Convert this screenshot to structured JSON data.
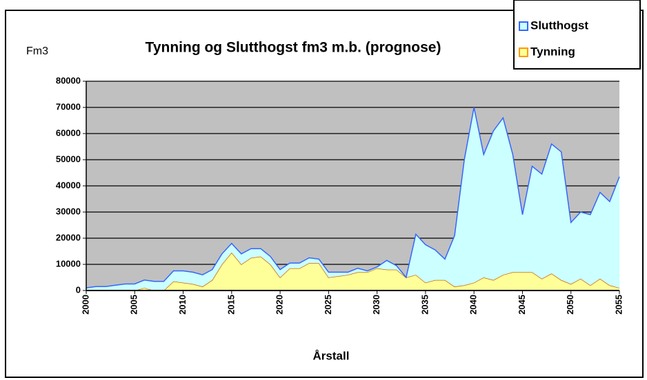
{
  "chart_data": {
    "type": "stacked-area",
    "title": "Tynning og Slutthogst fm3 m.b. (prognose)",
    "y_label": "Fm3",
    "x_label": "Årstall",
    "x": [
      2000,
      2001,
      2002,
      2003,
      2004,
      2005,
      2006,
      2007,
      2008,
      2009,
      2010,
      2011,
      2012,
      2013,
      2014,
      2015,
      2016,
      2017,
      2018,
      2019,
      2020,
      2021,
      2022,
      2023,
      2024,
      2025,
      2026,
      2027,
      2028,
      2029,
      2030,
      2031,
      2032,
      2033,
      2034,
      2035,
      2036,
      2037,
      2038,
      2039,
      2040,
      2041,
      2042,
      2043,
      2044,
      2045,
      2046,
      2047,
      2048,
      2049,
      2050,
      2051,
      2052,
      2053,
      2054,
      2055
    ],
    "series": [
      {
        "name": "Slutthogst",
        "color": "#ccffff",
        "stroke": "#3366ff",
        "values": [
          1000,
          1500,
          1500,
          2000,
          2500,
          2500,
          3000,
          3500,
          3500,
          4000,
          4500,
          4500,
          4500,
          4000,
          4000,
          3500,
          4000,
          3500,
          3000,
          3000,
          3000,
          2000,
          2000,
          2000,
          1500,
          2000,
          1500,
          1000,
          1500,
          500,
          500,
          3500,
          1500,
          0,
          15500,
          14500,
          11500,
          8000,
          19500,
          48000,
          67000,
          47000,
          57000,
          60000,
          45000,
          22000,
          40500,
          40000,
          49500,
          49000,
          23500,
          25500,
          27000,
          33000,
          32000,
          42500
        ]
      },
      {
        "name": "Tynning",
        "color": "#ffff99",
        "stroke": "#cc6600",
        "values": [
          0,
          0,
          0,
          0,
          0,
          0,
          1000,
          0,
          0,
          3500,
          3000,
          2500,
          1500,
          4000,
          10000,
          14500,
          10000,
          12500,
          13000,
          10000,
          5000,
          8500,
          8500,
          10500,
          10500,
          5000,
          5500,
          6000,
          7000,
          7000,
          8500,
          8000,
          8000,
          5000,
          6000,
          3000,
          4000,
          4000,
          1500,
          2000,
          3000,
          5000,
          4000,
          6000,
          7000,
          7000,
          7000,
          4500,
          6500,
          4000,
          2500,
          4500,
          2000,
          4500,
          2000,
          1000
        ]
      }
    ],
    "xlim": [
      2000,
      2055
    ],
    "xticks": [
      2000,
      2005,
      2010,
      2015,
      2020,
      2025,
      2030,
      2035,
      2040,
      2045,
      2050,
      2055
    ],
    "ylim": [
      0,
      80000
    ],
    "yticks": [
      0,
      10000,
      20000,
      30000,
      40000,
      50000,
      60000,
      70000,
      80000
    ],
    "grid": true,
    "plot_background": "#c0c0c0",
    "legend": "top-right"
  }
}
